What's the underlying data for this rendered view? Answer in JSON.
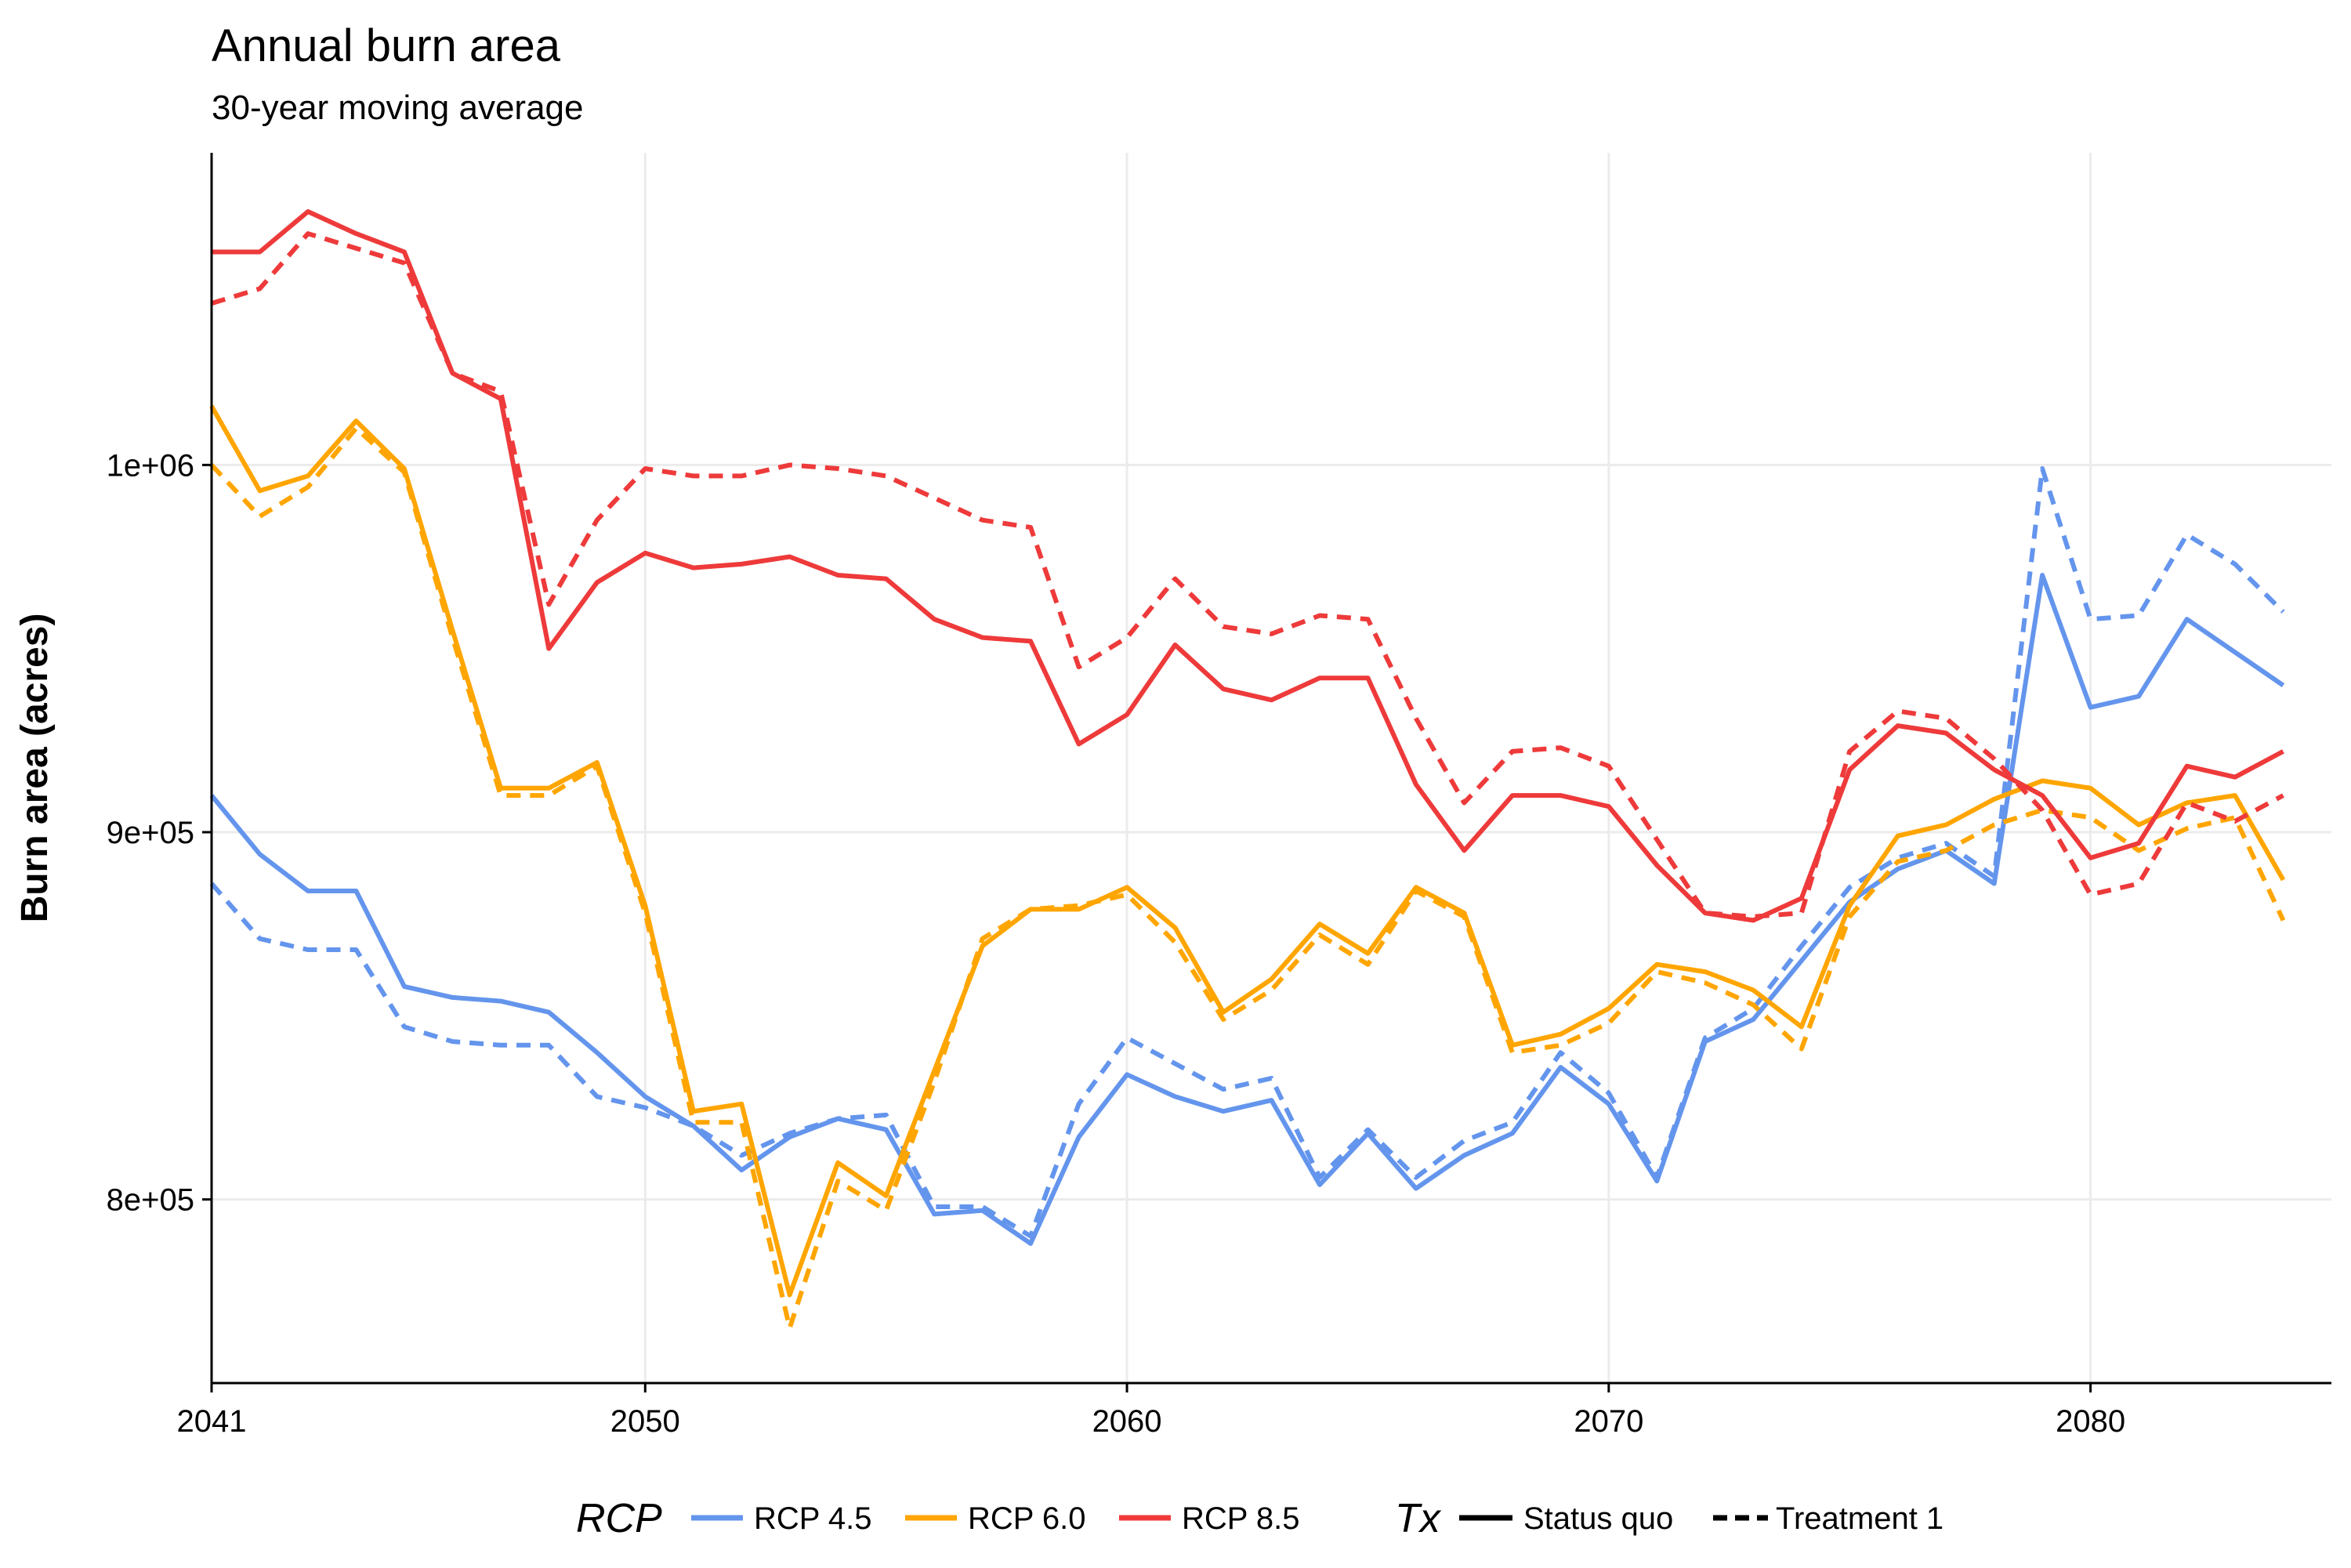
{
  "chart_data": {
    "type": "line",
    "title": "Annual burn area",
    "subtitle": "30-year moving average",
    "xlabel": "",
    "ylabel": "Burn area (acres)",
    "xlim": [
      2041,
      2085
    ],
    "ylim": [
      750000,
      1085000
    ],
    "x_ticks": [
      2041,
      2050,
      2060,
      2070,
      2080
    ],
    "y_ticks": [
      800000,
      900000,
      1000000
    ],
    "y_tick_labels": [
      "8e+05",
      "9e+05",
      "1e+06"
    ],
    "grid": true,
    "legend_position": "bottom",
    "colors": {
      "RCP 4.5": "#6495ED",
      "RCP 6.0": "#FFA500",
      "RCP 8.5": "#EE3A3A"
    },
    "legend": {
      "color_title": "RCP",
      "color_entries": [
        "RCP 4.5",
        "RCP 6.0",
        "RCP 8.5"
      ],
      "linetype_title": "Tx",
      "linetype_entries": [
        "Status quo",
        "Treatment 1"
      ]
    },
    "x": [
      2041,
      2042,
      2043,
      2044,
      2045,
      2046,
      2047,
      2048,
      2049,
      2050,
      2051,
      2052,
      2053,
      2054,
      2055,
      2056,
      2057,
      2058,
      2059,
      2060,
      2061,
      2062,
      2063,
      2064,
      2065,
      2066,
      2067,
      2068,
      2069,
      2070,
      2071,
      2072,
      2073,
      2074,
      2075,
      2076,
      2077,
      2078,
      2079,
      2080,
      2081,
      2082,
      2083,
      2084
    ],
    "series": [
      {
        "rcp": "RCP 4.5",
        "tx": "Status quo",
        "values": [
          910000,
          894000,
          884000,
          884000,
          858000,
          855000,
          854000,
          851000,
          840000,
          828000,
          820000,
          808000,
          817000,
          822000,
          819000,
          796000,
          797000,
          788000,
          817000,
          834000,
          828000,
          824000,
          827000,
          804000,
          818000,
          803000,
          812000,
          818000,
          836000,
          826000,
          805000,
          843000,
          849000,
          865000,
          881000,
          890000,
          895000,
          886000,
          970000,
          934000,
          937000,
          958000,
          949000,
          940000
        ]
      },
      {
        "rcp": "RCP 4.5",
        "tx": "Treatment 1",
        "values": [
          886000,
          871000,
          868000,
          868000,
          847000,
          843000,
          842000,
          842000,
          828000,
          825000,
          820000,
          812000,
          818000,
          822000,
          823000,
          798000,
          798000,
          790000,
          826000,
          844000,
          837000,
          830000,
          833000,
          806000,
          819000,
          806000,
          816000,
          821000,
          840000,
          829000,
          806000,
          844000,
          852000,
          869000,
          885000,
          893000,
          897000,
          888000,
          999000,
          958000,
          959000,
          981000,
          973000,
          960000
        ]
      },
      {
        "rcp": "RCP 6.0",
        "tx": "Status quo",
        "values": [
          1016000,
          993000,
          997000,
          1012000,
          999000,
          955000,
          912000,
          912000,
          919000,
          880000,
          824000,
          826000,
          774000,
          810000,
          801000,
          835000,
          869000,
          879000,
          879000,
          885000,
          874000,
          851000,
          860000,
          875000,
          867000,
          885000,
          878000,
          842000,
          845000,
          852000,
          864000,
          862000,
          857000,
          847000,
          880000,
          899000,
          902000,
          909000,
          914000,
          912000,
          902000,
          908000,
          910000,
          887000
        ]
      },
      {
        "rcp": "RCP 6.0",
        "tx": "Treatment 1",
        "values": [
          1000000,
          986000,
          994000,
          1010000,
          998000,
          953000,
          910000,
          910000,
          918000,
          878000,
          821000,
          821000,
          765000,
          805000,
          797000,
          832000,
          871000,
          879000,
          880000,
          883000,
          870000,
          849000,
          857000,
          872000,
          864000,
          884000,
          877000,
          840000,
          842000,
          848000,
          862000,
          859000,
          853000,
          841000,
          877000,
          892000,
          895000,
          902000,
          906000,
          904000,
          895000,
          901000,
          904000,
          876000
        ]
      },
      {
        "rcp": "RCP 8.5",
        "tx": "Status quo",
        "values": [
          1058000,
          1058000,
          1069000,
          1063000,
          1058000,
          1025000,
          1018000,
          950000,
          968000,
          976000,
          972000,
          973000,
          975000,
          970000,
          969000,
          958000,
          953000,
          952000,
          924000,
          932000,
          951000,
          939000,
          936000,
          942000,
          942000,
          913000,
          895000,
          910000,
          910000,
          907000,
          891000,
          878000,
          876000,
          882000,
          917000,
          929000,
          927000,
          917000,
          910000,
          893000,
          897000,
          918000,
          915000,
          922000
        ]
      },
      {
        "rcp": "RCP 8.5",
        "tx": "Treatment 1",
        "values": [
          1044000,
          1048000,
          1063000,
          1059000,
          1055000,
          1025000,
          1020000,
          962000,
          985000,
          999000,
          997000,
          997000,
          1000000,
          999000,
          997000,
          991000,
          985000,
          983000,
          945000,
          953000,
          969000,
          956000,
          954000,
          959000,
          958000,
          931000,
          908000,
          922000,
          923000,
          918000,
          898000,
          878000,
          877000,
          878000,
          922000,
          933000,
          931000,
          920000,
          906000,
          883000,
          886000,
          908000,
          903000,
          910000
        ]
      }
    ]
  }
}
